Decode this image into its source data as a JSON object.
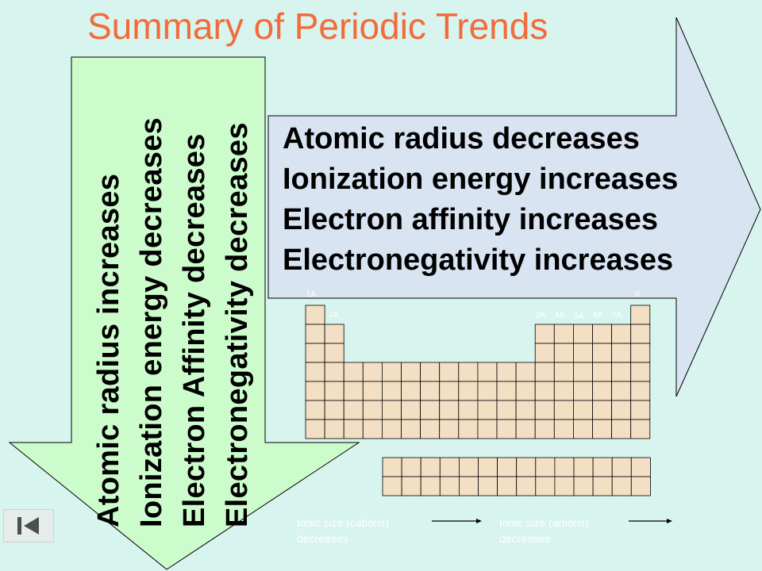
{
  "slide": {
    "title": "Summary of Periodic Trends"
  },
  "down_arrow": {
    "lines": [
      "Atomic radius increases",
      "Ionization energy decreases",
      "Electron Affinity decreases",
      "Electronegativity decreases"
    ]
  },
  "right_arrow": {
    "lines": [
      "Atomic radius decreases",
      "Ionization energy increases",
      "Electron affinity increases",
      "Electronegativity increases"
    ]
  },
  "periodic_table": {
    "group_labels": [
      "1A",
      "2A",
      "3A",
      "4A",
      "5A",
      "6A",
      "7A",
      "0"
    ]
  },
  "ionic_size": {
    "cations_line1": "Ionic size (cations)",
    "cations_line2": "decreases",
    "anions_line1": "Ionic size (anions)",
    "anions_line2": "decreases"
  },
  "colors": {
    "background": "#d8f4ee",
    "title": "#f26b3a",
    "down_arrow_fill": "#ccfccc",
    "right_arrow_fill": "#d8e4f2",
    "cell_fill": "#f3e0c4"
  },
  "icons": {
    "nav": "first-slide-icon"
  }
}
